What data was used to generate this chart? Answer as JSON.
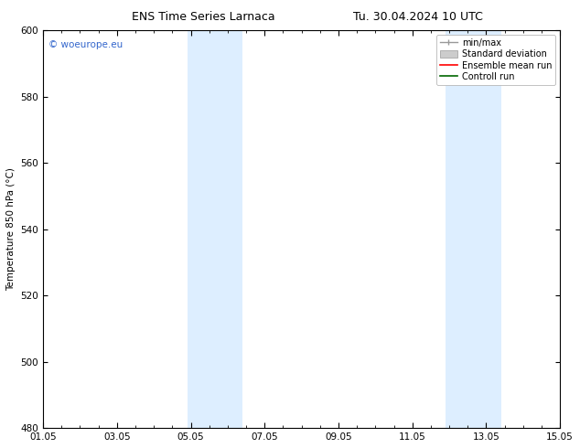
{
  "title_left": "ENS Time Series Larnaca",
  "title_right": "Tu. 30.04.2024 10 UTC",
  "ylabel": "Temperature 850 hPa (°C)",
  "ylim": [
    480,
    600
  ],
  "yticks": [
    480,
    500,
    520,
    540,
    560,
    580,
    600
  ],
  "xtick_labels": [
    "01.05",
    "03.05",
    "05.05",
    "07.05",
    "09.05",
    "11.05",
    "13.05",
    "15.05"
  ],
  "xtick_positions": [
    0,
    2,
    4,
    6,
    8,
    10,
    12,
    14
  ],
  "background_color": "#ffffff",
  "plot_bg_color": "#ffffff",
  "shaded_bands": [
    {
      "x_start": 3.9,
      "x_end": 5.4,
      "color": "#ddeeff"
    },
    {
      "x_start": 10.9,
      "x_end": 12.4,
      "color": "#ddeeff"
    }
  ],
  "watermark_text": "© woeurope.eu",
  "watermark_color": "#3366cc",
  "legend_entries": [
    {
      "label": "min/max"
    },
    {
      "label": "Standard deviation"
    },
    {
      "label": "Ensemble mean run"
    },
    {
      "label": "Controll run"
    }
  ],
  "border_color": "#000000",
  "tick_color": "#000000",
  "font_size_title": 9,
  "font_size_axis": 7.5,
  "font_size_legend": 7,
  "font_size_watermark": 7.5
}
